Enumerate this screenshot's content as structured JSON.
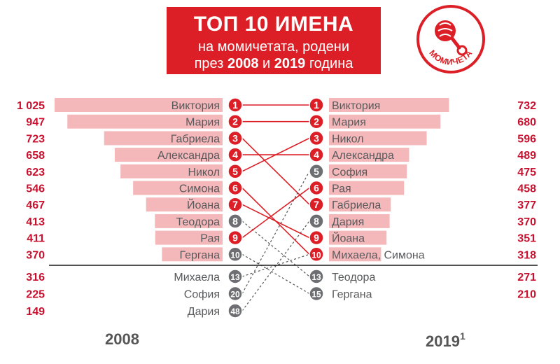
{
  "title": {
    "line1": "ТОП 10 ИМЕНА",
    "line2": "на момичетата, родени",
    "line3_prefix": "през",
    "line3_year1": "2008",
    "line3_conj": "и",
    "line3_year2": "2019",
    "line3_suffix": "година"
  },
  "logo": {
    "text": "МОМИЧЕТА",
    "icon": "rattle-icon"
  },
  "years": {
    "left": "2008",
    "right": "2019",
    "right_footnote": "1"
  },
  "colors": {
    "red": "#dc1f26",
    "bar": "#f4b8bb",
    "grey": "#6d6e71",
    "text": "#58595b",
    "value": "#c8102e"
  },
  "chart_data": {
    "type": "bar",
    "xlim": [
      0,
      1025
    ],
    "left": {
      "year": "2008",
      "rows": [
        {
          "rank": "1",
          "name": "Виктория",
          "value": 1025,
          "value_label": "1 025"
        },
        {
          "rank": "2",
          "name": "Мария",
          "value": 947,
          "value_label": "947"
        },
        {
          "rank": "3",
          "name": "Габриела",
          "value": 723,
          "value_label": "723"
        },
        {
          "rank": "4",
          "name": "Александра",
          "value": 658,
          "value_label": "658"
        },
        {
          "rank": "5",
          "name": "Никол",
          "value": 623,
          "value_label": "623"
        },
        {
          "rank": "6",
          "name": "Симона",
          "value": 546,
          "value_label": "546"
        },
        {
          "rank": "7",
          "name": "Йоана",
          "value": 467,
          "value_label": "467"
        },
        {
          "rank": "8",
          "name": "Теодора",
          "value": 413,
          "value_label": "413"
        },
        {
          "rank": "9",
          "name": "Рая",
          "value": 411,
          "value_label": "411"
        },
        {
          "rank": "10",
          "name": "Гергана",
          "value": 370,
          "value_label": "370"
        },
        {
          "rank": "13",
          "name": "Михаела",
          "value": 316,
          "value_label": "316"
        },
        {
          "rank": "20",
          "name": "София",
          "value": 225,
          "value_label": "225"
        },
        {
          "rank": "48",
          "name": "Дария",
          "value": 149,
          "value_label": "149"
        }
      ]
    },
    "right": {
      "year": "2019",
      "rows": [
        {
          "rank": "1",
          "name": "Виктория",
          "value": 732,
          "value_label": "732"
        },
        {
          "rank": "2",
          "name": "Мария",
          "value": 680,
          "value_label": "680"
        },
        {
          "rank": "3",
          "name": "Никол",
          "value": 596,
          "value_label": "596"
        },
        {
          "rank": "4",
          "name": "Александра",
          "value": 489,
          "value_label": "489"
        },
        {
          "rank": "5",
          "name": "София",
          "value": 475,
          "value_label": "475"
        },
        {
          "rank": "6",
          "name": "Рая",
          "value": 458,
          "value_label": "458"
        },
        {
          "rank": "7",
          "name": "Габриела",
          "value": 377,
          "value_label": "377"
        },
        {
          "rank": "8",
          "name": "Дария",
          "value": 370,
          "value_label": "370"
        },
        {
          "rank": "9",
          "name": "Йоана",
          "value": 351,
          "value_label": "351"
        },
        {
          "rank": "10",
          "name": "Михаела, Симона",
          "value": 318,
          "value_label": "318"
        },
        {
          "rank": "13",
          "name": "Теодора",
          "value": 271,
          "value_label": "271"
        },
        {
          "rank": "15",
          "name": "Гергана",
          "value": 210,
          "value_label": "210"
        }
      ]
    },
    "connections": [
      {
        "from": "1",
        "to": "1",
        "style": "solid"
      },
      {
        "from": "2",
        "to": "2",
        "style": "solid"
      },
      {
        "from": "3",
        "to": "7",
        "style": "solid"
      },
      {
        "from": "4",
        "to": "4",
        "style": "solid"
      },
      {
        "from": "5",
        "to": "3",
        "style": "solid"
      },
      {
        "from": "6",
        "to": "10",
        "style": "solid"
      },
      {
        "from": "7",
        "to": "9",
        "style": "solid"
      },
      {
        "from": "8",
        "to": "13",
        "style": "dashed"
      },
      {
        "from": "9",
        "to": "6",
        "style": "solid"
      },
      {
        "from": "10",
        "to": "15",
        "style": "dashed"
      },
      {
        "from": "13",
        "to": "10",
        "style": "dashed"
      },
      {
        "from": "20",
        "to": "5",
        "style": "dashed"
      },
      {
        "from": "48",
        "to": "8",
        "style": "dashed"
      }
    ]
  }
}
